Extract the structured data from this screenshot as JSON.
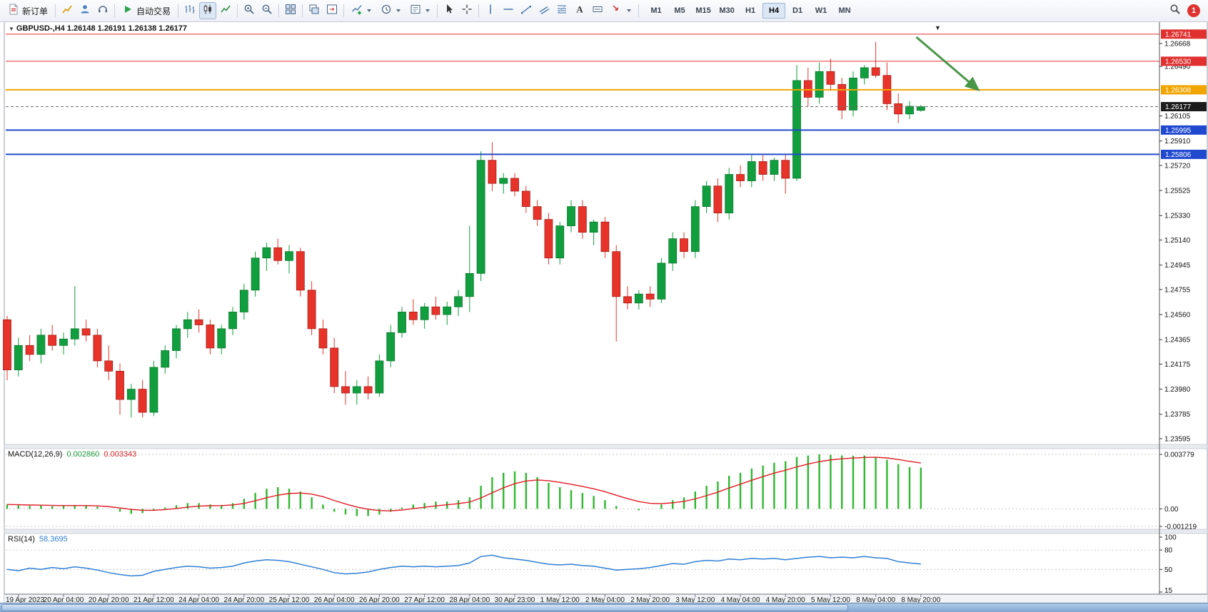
{
  "toolbar": {
    "new_order": {
      "label": "新订单"
    },
    "autotrading": {
      "label": "自动交易"
    },
    "timeframes": {
      "items": [
        "M1",
        "M5",
        "M15",
        "M30",
        "H1",
        "H4",
        "D1",
        "W1",
        "MN"
      ],
      "active": "H4"
    },
    "notification": {
      "count": "1"
    }
  },
  "chart": {
    "collapse_marker": "▼",
    "title": "GBPUSD-,H4  1.26148 1.26191 1.26138 1.26177",
    "time_axis": [
      "19 Apr 2023",
      "20 Apr 04:00",
      "20 Apr 20:00",
      "21 Apr 12:00",
      "24 Apr 04:00",
      "24 Apr 20:00",
      "25 Apr 12:00",
      "26 Apr 04:00",
      "26 Apr 20:00",
      "27 Apr 12:00",
      "28 Apr 04:00",
      "30 Apr 23:00",
      "1 May 12:00",
      "2 May 04:00",
      "2 May 20:00",
      "3 May 12:00",
      "4 May 04:00",
      "4 May 20:00",
      "5 May 12:00",
      "8 May 04:00",
      "8 May 20:00"
    ]
  },
  "chart_data": [
    {
      "type": "candlestick",
      "symbol": "GBPUSD-",
      "period": "H4",
      "ohlc": {
        "open": 1.26148,
        "high": 1.26191,
        "low": 1.26138,
        "close": 1.26177
      },
      "up_color": "#119e3e",
      "down_color": "#e8332a",
      "ylim": [
        1.23595,
        1.26741
      ],
      "y_ticks": [
        1.26668,
        1.2649,
        1.26105,
        1.2591,
        1.2572,
        1.25525,
        1.2533,
        1.2514,
        1.24945,
        1.24755,
        1.2456,
        1.24365,
        1.24175,
        1.2398,
        1.23785,
        1.23595
      ],
      "levels": [
        {
          "price": 1.26741,
          "color": "#e03030",
          "width": 1
        },
        {
          "price": 1.2653,
          "color": "#e03030",
          "width": 1
        },
        {
          "price": 1.26308,
          "color": "#f0a500",
          "width": 2
        },
        {
          "price": 1.25995,
          "color": "#2049d0",
          "width": 2
        },
        {
          "price": 1.25806,
          "color": "#2049d0",
          "width": 2
        }
      ],
      "current_price": {
        "value": 1.26177,
        "badge_color": "#1c1c1c"
      },
      "x_labels_every": 4,
      "first_label_index": 1,
      "annotations": {
        "arrow": {
          "from_bar": 80.6,
          "from_price": 1.26718,
          "to_bar": 86.1,
          "to_price": 1.26307,
          "color": "#4a9648"
        },
        "top_marker": {
          "bar": 82.5,
          "symbol": "▼"
        }
      },
      "candles": [
        [
          1.2452,
          1.2455,
          1.2405,
          1.2413
        ],
        [
          1.2413,
          1.2438,
          1.2408,
          1.2432
        ],
        [
          1.2432,
          1.244,
          1.242,
          1.2425
        ],
        [
          1.2425,
          1.2445,
          1.2418,
          1.244
        ],
        [
          1.244,
          1.2448,
          1.2428,
          1.2432
        ],
        [
          1.2432,
          1.2442,
          1.2425,
          1.2437
        ],
        [
          1.2437,
          1.2478,
          1.2432,
          1.2445
        ],
        [
          1.2445,
          1.2452,
          1.2435,
          1.244
        ],
        [
          1.244,
          1.2445,
          1.2415,
          1.242
        ],
        [
          1.242,
          1.2432,
          1.2405,
          1.2412
        ],
        [
          1.2412,
          1.2418,
          1.2378,
          1.239
        ],
        [
          1.239,
          1.2402,
          1.2376,
          1.2398
        ],
        [
          1.2398,
          1.2405,
          1.2376,
          1.238
        ],
        [
          1.238,
          1.242,
          1.2377,
          1.2415
        ],
        [
          1.2415,
          1.2432,
          1.241,
          1.2428
        ],
        [
          1.2428,
          1.2448,
          1.2422,
          1.2445
        ],
        [
          1.2445,
          1.2458,
          1.2438,
          1.2452
        ],
        [
          1.2452,
          1.246,
          1.2442,
          1.2448
        ],
        [
          1.2448,
          1.2452,
          1.2425,
          1.243
        ],
        [
          1.243,
          1.2448,
          1.2425,
          1.2445
        ],
        [
          1.2445,
          1.2462,
          1.244,
          1.2458
        ],
        [
          1.2458,
          1.248,
          1.2452,
          1.2475
        ],
        [
          1.2475,
          1.2505,
          1.247,
          1.25
        ],
        [
          1.25,
          1.2512,
          1.249,
          1.2508
        ],
        [
          1.2508,
          1.2515,
          1.2495,
          1.2498
        ],
        [
          1.2498,
          1.251,
          1.2488,
          1.2505
        ],
        [
          1.2505,
          1.2508,
          1.247,
          1.2475
        ],
        [
          1.2475,
          1.2482,
          1.244,
          1.2445
        ],
        [
          1.2445,
          1.2452,
          1.2425,
          1.243
        ],
        [
          1.243,
          1.2438,
          1.2395,
          1.24
        ],
        [
          1.24,
          1.2412,
          1.2386,
          1.2395
        ],
        [
          1.2395,
          1.2405,
          1.2386,
          1.24
        ],
        [
          1.24,
          1.2408,
          1.239,
          1.2395
        ],
        [
          1.2395,
          1.2425,
          1.2392,
          1.242
        ],
        [
          1.242,
          1.2448,
          1.2415,
          1.2442
        ],
        [
          1.2442,
          1.2462,
          1.2438,
          1.2458
        ],
        [
          1.2458,
          1.2468,
          1.2448,
          1.2452
        ],
        [
          1.2452,
          1.2465,
          1.2445,
          1.2462
        ],
        [
          1.2462,
          1.247,
          1.2452,
          1.2456
        ],
        [
          1.2456,
          1.2466,
          1.2448,
          1.2462
        ],
        [
          1.2462,
          1.2475,
          1.2455,
          1.247
        ],
        [
          1.247,
          1.2525,
          1.2458,
          1.2488
        ],
        [
          1.2488,
          1.2583,
          1.2482,
          1.2576
        ],
        [
          1.2576,
          1.259,
          1.2552,
          1.2558
        ],
        [
          1.2558,
          1.2566,
          1.255,
          1.2562
        ],
        [
          1.2562,
          1.2566,
          1.2548,
          1.2552
        ],
        [
          1.2552,
          1.2556,
          1.2535,
          1.254
        ],
        [
          1.254,
          1.2545,
          1.2525,
          1.253
        ],
        [
          1.253,
          1.2535,
          1.2495,
          1.25
        ],
        [
          1.25,
          1.2528,
          1.2495,
          1.2525
        ],
        [
          1.2525,
          1.2545,
          1.252,
          1.254
        ],
        [
          1.254,
          1.2545,
          1.2515,
          1.252
        ],
        [
          1.252,
          1.253,
          1.251,
          1.2528
        ],
        [
          1.2528,
          1.2532,
          1.25,
          1.2505
        ],
        [
          1.2505,
          1.251,
          1.2435,
          1.247
        ],
        [
          1.247,
          1.2478,
          1.246,
          1.2465
        ],
        [
          1.2465,
          1.2475,
          1.246,
          1.2472
        ],
        [
          1.2472,
          1.2478,
          1.2462,
          1.2468
        ],
        [
          1.2468,
          1.25,
          1.2465,
          1.2496
        ],
        [
          1.2496,
          1.252,
          1.249,
          1.2515
        ],
        [
          1.2515,
          1.252,
          1.25,
          1.2505
        ],
        [
          1.2505,
          1.2545,
          1.25,
          1.254
        ],
        [
          1.254,
          1.256,
          1.2535,
          1.2556
        ],
        [
          1.2556,
          1.2562,
          1.2528,
          1.2535
        ],
        [
          1.2535,
          1.257,
          1.253,
          1.2565
        ],
        [
          1.2565,
          1.2572,
          1.2555,
          1.256
        ],
        [
          1.256,
          1.258,
          1.2555,
          1.2575
        ],
        [
          1.2575,
          1.258,
          1.256,
          1.2565
        ],
        [
          1.2565,
          1.2578,
          1.256,
          1.2576
        ],
        [
          1.2576,
          1.258,
          1.255,
          1.2562
        ],
        [
          1.2562,
          1.265,
          1.256,
          1.2638
        ],
        [
          1.2638,
          1.2648,
          1.2618,
          1.2625
        ],
        [
          1.2625,
          1.2652,
          1.262,
          1.2645
        ],
        [
          1.2645,
          1.2655,
          1.263,
          1.2635
        ],
        [
          1.2635,
          1.264,
          1.2608,
          1.2615
        ],
        [
          1.2615,
          1.2645,
          1.261,
          1.264
        ],
        [
          1.264,
          1.265,
          1.2635,
          1.2648
        ],
        [
          1.2648,
          1.2668,
          1.264,
          1.2642
        ],
        [
          1.2642,
          1.2652,
          1.2615,
          1.262
        ],
        [
          1.262,
          1.2628,
          1.2605,
          1.2612
        ],
        [
          1.2612,
          1.2622,
          1.2608,
          1.2618
        ],
        [
          1.26148,
          1.26191,
          1.26138,
          1.26177
        ]
      ]
    },
    {
      "type": "bar",
      "name": "MACD",
      "label": "MACD(12,26,9)",
      "value_main": "0.002860",
      "value_signal": "0.003343",
      "histogram_color": "#2eb82e",
      "signal_color": "#e01b24",
      "ylim": [
        -0.001219,
        0.003779
      ],
      "y_ticks": [
        {
          "v": 0.003779,
          "label": "0.003779"
        },
        {
          "v": 0,
          "label": "0.00"
        },
        {
          "v": -0.001219,
          "label": "-0.001219"
        }
      ],
      "values": [
        0.0003,
        0.00025,
        0.0002,
        0.00022,
        0.00018,
        0.0002,
        0.00025,
        0.0002,
        0.00015,
        0.0,
        -0.0002,
        -0.00035,
        -0.0003,
        -0.0001,
        0.0001,
        0.00025,
        0.0004,
        0.0004,
        0.0003,
        0.00025,
        0.0004,
        0.0007,
        0.0011,
        0.0014,
        0.0015,
        0.0014,
        0.0012,
        0.0008,
        0.0003,
        -0.0002,
        -0.0004,
        -0.0005,
        -0.0005,
        -0.0004,
        -0.0002,
        0.0001,
        0.0003,
        0.0004,
        0.0005,
        0.0005,
        0.0006,
        0.0008,
        0.0016,
        0.0022,
        0.0025,
        0.0026,
        0.0025,
        0.0022,
        0.0018,
        0.0015,
        0.0013,
        0.0011,
        0.0009,
        0.0006,
        0.0002,
        0.0,
        -0.0001,
        0.0,
        0.0003,
        0.0006,
        0.0008,
        0.0012,
        0.0016,
        0.0019,
        0.0023,
        0.0025,
        0.0028,
        0.003,
        0.0032,
        0.0033,
        0.0036,
        0.0037,
        0.00378,
        0.00375,
        0.0037,
        0.00368,
        0.0037,
        0.0036,
        0.0034,
        0.0031,
        0.0029,
        0.00286
      ]
    },
    {
      "type": "line",
      "name": "RSI",
      "label": "RSI(14)",
      "value": "58.3695",
      "line_color": "#2f7fd4",
      "ylim": [
        15,
        100
      ],
      "levels": [
        80,
        50
      ],
      "y_ticks": [
        {
          "v": 100,
          "label": "100"
        },
        {
          "v": 80,
          "label": "80"
        },
        {
          "v": 50,
          "label": "50"
        },
        {
          "v": 15,
          "label": "15"
        }
      ],
      "values": [
        50,
        48,
        52,
        50,
        53,
        51,
        54,
        52,
        49,
        45,
        42,
        40,
        41,
        47,
        50,
        53,
        55,
        54,
        52,
        53,
        55,
        60,
        63,
        65,
        64,
        62,
        58,
        54,
        50,
        45,
        43,
        44,
        46,
        50,
        53,
        55,
        54,
        55,
        54,
        55,
        56,
        60,
        70,
        72,
        68,
        66,
        64,
        61,
        58,
        57,
        58,
        56,
        55,
        52,
        49,
        50,
        51,
        53,
        56,
        59,
        58,
        62,
        64,
        63,
        66,
        65,
        67,
        66,
        67,
        65,
        67,
        69,
        70,
        68,
        69,
        68,
        70,
        68,
        67,
        62,
        60,
        58.37
      ]
    }
  ]
}
